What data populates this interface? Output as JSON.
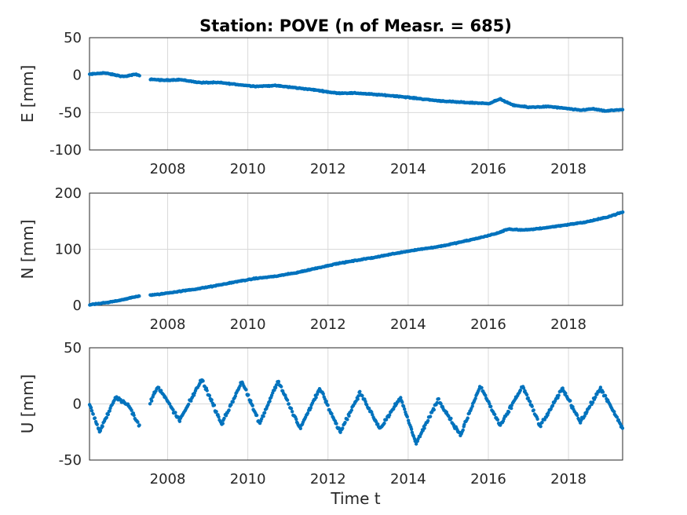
{
  "figure": {
    "title": "Station: POVE (n of Measr. = 685)",
    "xlabel": "Time t"
  },
  "chart_data": [
    {
      "type": "scatter",
      "ylabel": "E [mm]",
      "xlim": [
        2006.05,
        2019.35
      ],
      "ylim": [
        -100,
        50
      ],
      "xticks": [
        2008,
        2010,
        2012,
        2014,
        2016,
        2018
      ],
      "yticks": [
        -100,
        -50,
        0,
        50
      ],
      "grid": true,
      "marker_color": "#0072BD",
      "points_count": 685,
      "profile": [
        [
          2006.05,
          1
        ],
        [
          2006.4,
          3
        ],
        [
          2006.9,
          -2
        ],
        [
          2007.2,
          1
        ],
        [
          2007.5,
          -5
        ],
        [
          2007.9,
          -7
        ],
        [
          2008.3,
          -6
        ],
        [
          2008.8,
          -10
        ],
        [
          2009.3,
          -10
        ],
        [
          2009.8,
          -13
        ],
        [
          2010.2,
          -15
        ],
        [
          2010.7,
          -14
        ],
        [
          2011.2,
          -17
        ],
        [
          2011.7,
          -20
        ],
        [
          2012.2,
          -24
        ],
        [
          2012.7,
          -24
        ],
        [
          2013.2,
          -26
        ],
        [
          2013.7,
          -28
        ],
        [
          2014.2,
          -31
        ],
        [
          2014.7,
          -34
        ],
        [
          2015.2,
          -36
        ],
        [
          2015.6,
          -37
        ],
        [
          2016.0,
          -38
        ],
        [
          2016.3,
          -32
        ],
        [
          2016.6,
          -40
        ],
        [
          2017.0,
          -43
        ],
        [
          2017.5,
          -42
        ],
        [
          2018.0,
          -45
        ],
        [
          2018.3,
          -47
        ],
        [
          2018.6,
          -45
        ],
        [
          2018.9,
          -48
        ],
        [
          2019.35,
          -46
        ]
      ]
    },
    {
      "type": "scatter",
      "ylabel": "N [mm]",
      "xlim": [
        2006.05,
        2019.35
      ],
      "ylim": [
        0,
        200
      ],
      "xticks": [
        2008,
        2010,
        2012,
        2014,
        2016,
        2018
      ],
      "yticks": [
        0,
        100,
        200
      ],
      "grid": true,
      "marker_color": "#0072BD",
      "points_count": 685,
      "profile": [
        [
          2006.05,
          1
        ],
        [
          2006.5,
          5
        ],
        [
          2007.0,
          12
        ],
        [
          2007.3,
          17
        ],
        [
          2007.7,
          19
        ],
        [
          2008.2,
          24
        ],
        [
          2008.7,
          29
        ],
        [
          2009.2,
          35
        ],
        [
          2009.7,
          42
        ],
        [
          2010.2,
          48
        ],
        [
          2010.7,
          52
        ],
        [
          2011.2,
          58
        ],
        [
          2011.7,
          66
        ],
        [
          2012.2,
          74
        ],
        [
          2012.7,
          80
        ],
        [
          2013.2,
          86
        ],
        [
          2013.7,
          93
        ],
        [
          2014.2,
          99
        ],
        [
          2014.7,
          104
        ],
        [
          2015.2,
          111
        ],
        [
          2015.7,
          119
        ],
        [
          2016.2,
          128
        ],
        [
          2016.5,
          136
        ],
        [
          2016.9,
          134
        ],
        [
          2017.4,
          138
        ],
        [
          2017.9,
          143
        ],
        [
          2018.4,
          148
        ],
        [
          2018.9,
          156
        ],
        [
          2019.35,
          166
        ]
      ]
    },
    {
      "type": "scatter",
      "ylabel": "U [mm]",
      "xlim": [
        2006.05,
        2019.35
      ],
      "ylim": [
        -50,
        50
      ],
      "xticks": [
        2008,
        2010,
        2012,
        2014,
        2016,
        2018
      ],
      "yticks": [
        -50,
        0,
        50
      ],
      "grid": true,
      "marker_color": "#0072BD",
      "points_count": 685,
      "profile": [
        [
          2006.05,
          0
        ],
        [
          2006.3,
          -25
        ],
        [
          2006.7,
          6
        ],
        [
          2007.0,
          0
        ],
        [
          2007.3,
          -20
        ],
        [
          2007.75,
          16
        ],
        [
          2008.3,
          -15
        ],
        [
          2008.85,
          22
        ],
        [
          2009.35,
          -18
        ],
        [
          2009.85,
          20
        ],
        [
          2010.3,
          -18
        ],
        [
          2010.75,
          21
        ],
        [
          2011.3,
          -22
        ],
        [
          2011.8,
          14
        ],
        [
          2012.3,
          -25
        ],
        [
          2012.8,
          10
        ],
        [
          2013.3,
          -22
        ],
        [
          2013.8,
          6
        ],
        [
          2014.2,
          -35
        ],
        [
          2014.75,
          4
        ],
        [
          2015.3,
          -28
        ],
        [
          2015.8,
          16
        ],
        [
          2016.3,
          -20
        ],
        [
          2016.85,
          16
        ],
        [
          2017.3,
          -20
        ],
        [
          2017.85,
          14
        ],
        [
          2018.3,
          -16
        ],
        [
          2018.8,
          14
        ],
        [
          2019.35,
          -22
        ]
      ]
    }
  ]
}
